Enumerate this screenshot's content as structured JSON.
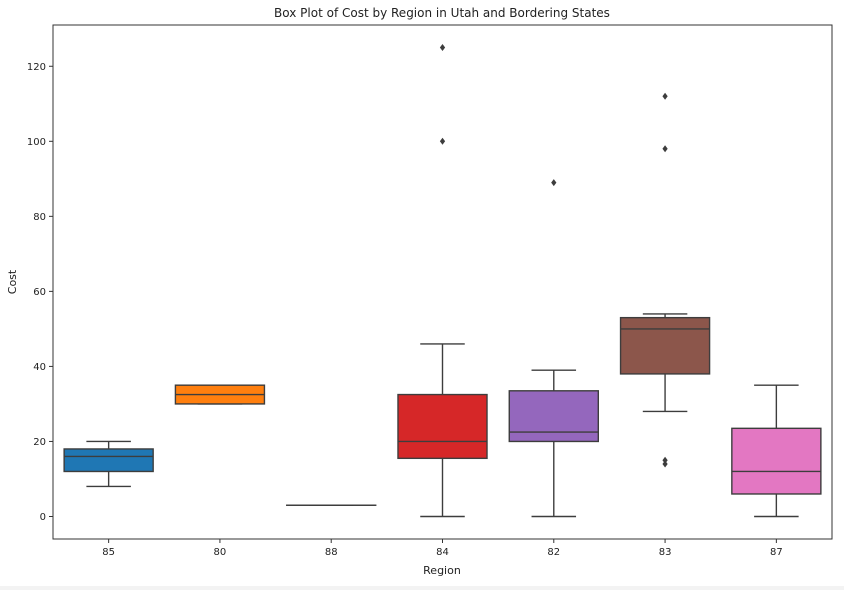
{
  "chart_data": {
    "type": "box",
    "title": "Box Plot of Cost by Region in Utah and Bordering States",
    "xlabel": "Region",
    "ylabel": "Cost",
    "ylim": [
      -6,
      131
    ],
    "yticks": [
      0,
      20,
      40,
      60,
      80,
      100,
      120
    ],
    "grid": false,
    "legend": false,
    "categories": [
      "85",
      "80",
      "88",
      "84",
      "82",
      "83",
      "87"
    ],
    "boxes": [
      {
        "category": "85",
        "color": "#1f77b4",
        "whisker_low": 8,
        "q1": 12,
        "median": 16,
        "q3": 18,
        "whisker_high": 20,
        "outliers": []
      },
      {
        "category": "80",
        "color": "#ff7f0e",
        "whisker_low": 30,
        "q1": 30,
        "median": 32.5,
        "q3": 35,
        "whisker_high": 35,
        "outliers": []
      },
      {
        "category": "88",
        "color": "#2ca02c",
        "whisker_low": 3,
        "q1": 3,
        "median": 3,
        "q3": 3,
        "whisker_high": 3,
        "outliers": []
      },
      {
        "category": "84",
        "color": "#d62728",
        "whisker_low": 0,
        "q1": 15.5,
        "median": 20,
        "q3": 32.5,
        "whisker_high": 46,
        "outliers": [
          100,
          125
        ]
      },
      {
        "category": "82",
        "color": "#9467bd",
        "whisker_low": 0,
        "q1": 20,
        "median": 22.5,
        "q3": 33.5,
        "whisker_high": 39,
        "outliers": [
          89
        ]
      },
      {
        "category": "83",
        "color": "#8c564b",
        "whisker_low": 28,
        "q1": 38,
        "median": 50,
        "q3": 53,
        "whisker_high": 54,
        "outliers": [
          14,
          15,
          98,
          112
        ]
      },
      {
        "category": "87",
        "color": "#e377c2",
        "whisker_low": 0,
        "q1": 6,
        "median": 12,
        "q3": 23.5,
        "whisker_high": 35,
        "outliers": []
      }
    ]
  }
}
